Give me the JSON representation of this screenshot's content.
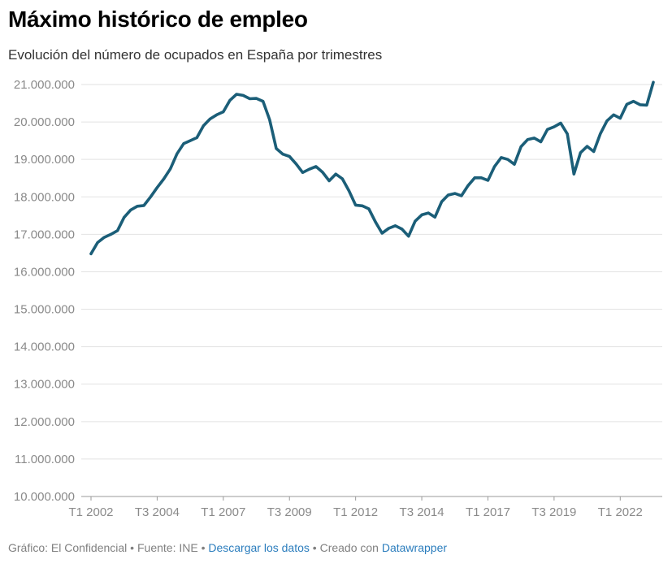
{
  "title": "Máximo histórico de empleo",
  "subtitle": "Evolución del número de ocupados en España por trimestres",
  "footer": {
    "grafico": "Gráfico: El Confidencial",
    "fuente": "Fuente: INE",
    "descargar": "Descargar los datos",
    "creado": "Creado con",
    "datawrapper": "Datawrapper",
    "separator": " • ",
    "link_color": "#2b7dbd"
  },
  "chart_data": {
    "type": "line",
    "line_color": "#1b5e78",
    "grid": true,
    "ylim": [
      10000000,
      21000000
    ],
    "y_ticks": [
      {
        "value": 21000000,
        "label": "21.000.000"
      },
      {
        "value": 20000000,
        "label": "20.000.000"
      },
      {
        "value": 19000000,
        "label": "19.000.000"
      },
      {
        "value": 18000000,
        "label": "18.000.000"
      },
      {
        "value": 17000000,
        "label": "17.000.000"
      },
      {
        "value": 16000000,
        "label": "16.000.000"
      },
      {
        "value": 15000000,
        "label": "15.000.000"
      },
      {
        "value": 14000000,
        "label": "14.000.000"
      },
      {
        "value": 13000000,
        "label": "13.000.000"
      },
      {
        "value": 12000000,
        "label": "12.000.000"
      },
      {
        "value": 11000000,
        "label": "11.000.000"
      },
      {
        "value": 10000000,
        "label": "10.000.000"
      }
    ],
    "x_ticks": [
      {
        "index": 0,
        "label": "T1 2002"
      },
      {
        "index": 10,
        "label": "T3 2004"
      },
      {
        "index": 20,
        "label": "T1 2007"
      },
      {
        "index": 30,
        "label": "T3 2009"
      },
      {
        "index": 40,
        "label": "T1 2012"
      },
      {
        "index": 50,
        "label": "T3 2014"
      },
      {
        "index": 60,
        "label": "T1 2017"
      },
      {
        "index": 70,
        "label": "T3 2019"
      },
      {
        "index": 80,
        "label": "T1 2022"
      }
    ],
    "x": [
      "T1 2002",
      "T2 2002",
      "T3 2002",
      "T4 2002",
      "T1 2003",
      "T2 2003",
      "T3 2003",
      "T4 2003",
      "T1 2004",
      "T2 2004",
      "T3 2004",
      "T4 2004",
      "T1 2005",
      "T2 2005",
      "T3 2005",
      "T4 2005",
      "T1 2006",
      "T2 2006",
      "T3 2006",
      "T4 2006",
      "T1 2007",
      "T2 2007",
      "T3 2007",
      "T4 2007",
      "T1 2008",
      "T2 2008",
      "T3 2008",
      "T4 2008",
      "T1 2009",
      "T2 2009",
      "T3 2009",
      "T4 2009",
      "T1 2010",
      "T2 2010",
      "T3 2010",
      "T4 2010",
      "T1 2011",
      "T2 2011",
      "T3 2011",
      "T4 2011",
      "T1 2012",
      "T2 2012",
      "T3 2012",
      "T4 2012",
      "T1 2013",
      "T2 2013",
      "T3 2013",
      "T4 2013",
      "T1 2014",
      "T2 2014",
      "T3 2014",
      "T4 2014",
      "T1 2015",
      "T2 2015",
      "T3 2015",
      "T4 2015",
      "T1 2016",
      "T2 2016",
      "T3 2016",
      "T4 2016",
      "T1 2017",
      "T2 2017",
      "T3 2017",
      "T4 2017",
      "T1 2018",
      "T2 2018",
      "T3 2018",
      "T4 2018",
      "T1 2019",
      "T2 2019",
      "T3 2019",
      "T4 2019",
      "T1 2020",
      "T2 2020",
      "T3 2020",
      "T4 2020",
      "T1 2021",
      "T2 2021",
      "T3 2021",
      "T4 2021",
      "T1 2022",
      "T2 2022",
      "T3 2022",
      "T4 2022",
      "T1 2023",
      "T2 2023"
    ],
    "series": [
      {
        "values": [
          16480000,
          16780000,
          16920000,
          17000000,
          17100000,
          17450000,
          17650000,
          17750000,
          17770000,
          18000000,
          18250000,
          18480000,
          18750000,
          19150000,
          19420000,
          19500000,
          19580000,
          19900000,
          20080000,
          20190000,
          20270000,
          20580000,
          20740000,
          20710000,
          20620000,
          20630000,
          20550000,
          20060000,
          19290000,
          19140000,
          19080000,
          18880000,
          18650000,
          18740000,
          18810000,
          18660000,
          18430000,
          18610000,
          18480000,
          18160000,
          17780000,
          17760000,
          17680000,
          17330000,
          17030000,
          17160000,
          17230000,
          17140000,
          16950000,
          17350000,
          17520000,
          17570000,
          17460000,
          17870000,
          18050000,
          18090000,
          18030000,
          18300000,
          18510000,
          18510000,
          18440000,
          18810000,
          19050000,
          19000000,
          18870000,
          19340000,
          19530000,
          19570000,
          19470000,
          19800000,
          19870000,
          19970000,
          19680000,
          18610000,
          19180000,
          19350000,
          19210000,
          19690000,
          20030000,
          20190000,
          20100000,
          20470000,
          20550000,
          20460000,
          20450000,
          21060000
        ]
      }
    ]
  }
}
